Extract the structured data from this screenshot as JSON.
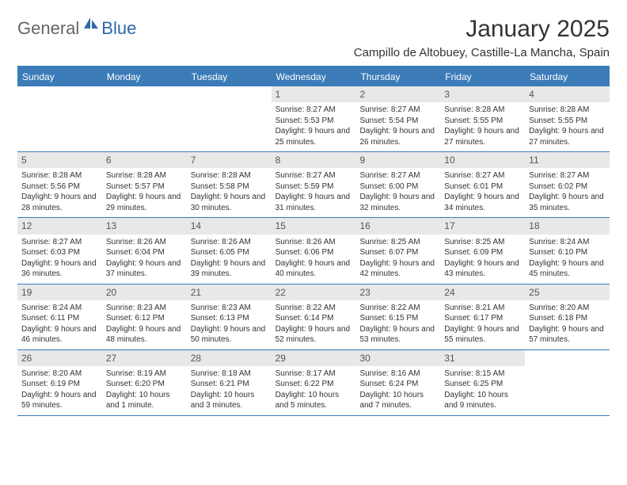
{
  "logo": {
    "general": "General",
    "blue": "Blue"
  },
  "title": "January 2025",
  "location": "Campillo de Altobuey, Castille-La Mancha, Spain",
  "weekdays": [
    "Sunday",
    "Monday",
    "Tuesday",
    "Wednesday",
    "Thursday",
    "Friday",
    "Saturday"
  ],
  "weeks": [
    [
      {
        "day": "",
        "lines": []
      },
      {
        "day": "",
        "lines": []
      },
      {
        "day": "",
        "lines": []
      },
      {
        "day": "1",
        "lines": [
          "Sunrise: 8:27 AM",
          "Sunset: 5:53 PM",
          "Daylight: 9 hours and 25 minutes."
        ]
      },
      {
        "day": "2",
        "lines": [
          "Sunrise: 8:27 AM",
          "Sunset: 5:54 PM",
          "Daylight: 9 hours and 26 minutes."
        ]
      },
      {
        "day": "3",
        "lines": [
          "Sunrise: 8:28 AM",
          "Sunset: 5:55 PM",
          "Daylight: 9 hours and 27 minutes."
        ]
      },
      {
        "day": "4",
        "lines": [
          "Sunrise: 8:28 AM",
          "Sunset: 5:55 PM",
          "Daylight: 9 hours and 27 minutes."
        ]
      }
    ],
    [
      {
        "day": "5",
        "lines": [
          "Sunrise: 8:28 AM",
          "Sunset: 5:56 PM",
          "Daylight: 9 hours and 28 minutes."
        ]
      },
      {
        "day": "6",
        "lines": [
          "Sunrise: 8:28 AM",
          "Sunset: 5:57 PM",
          "Daylight: 9 hours and 29 minutes."
        ]
      },
      {
        "day": "7",
        "lines": [
          "Sunrise: 8:28 AM",
          "Sunset: 5:58 PM",
          "Daylight: 9 hours and 30 minutes."
        ]
      },
      {
        "day": "8",
        "lines": [
          "Sunrise: 8:27 AM",
          "Sunset: 5:59 PM",
          "Daylight: 9 hours and 31 minutes."
        ]
      },
      {
        "day": "9",
        "lines": [
          "Sunrise: 8:27 AM",
          "Sunset: 6:00 PM",
          "Daylight: 9 hours and 32 minutes."
        ]
      },
      {
        "day": "10",
        "lines": [
          "Sunrise: 8:27 AM",
          "Sunset: 6:01 PM",
          "Daylight: 9 hours and 34 minutes."
        ]
      },
      {
        "day": "11",
        "lines": [
          "Sunrise: 8:27 AM",
          "Sunset: 6:02 PM",
          "Daylight: 9 hours and 35 minutes."
        ]
      }
    ],
    [
      {
        "day": "12",
        "lines": [
          "Sunrise: 8:27 AM",
          "Sunset: 6:03 PM",
          "Daylight: 9 hours and 36 minutes."
        ]
      },
      {
        "day": "13",
        "lines": [
          "Sunrise: 8:26 AM",
          "Sunset: 6:04 PM",
          "Daylight: 9 hours and 37 minutes."
        ]
      },
      {
        "day": "14",
        "lines": [
          "Sunrise: 8:26 AM",
          "Sunset: 6:05 PM",
          "Daylight: 9 hours and 39 minutes."
        ]
      },
      {
        "day": "15",
        "lines": [
          "Sunrise: 8:26 AM",
          "Sunset: 6:06 PM",
          "Daylight: 9 hours and 40 minutes."
        ]
      },
      {
        "day": "16",
        "lines": [
          "Sunrise: 8:25 AM",
          "Sunset: 6:07 PM",
          "Daylight: 9 hours and 42 minutes."
        ]
      },
      {
        "day": "17",
        "lines": [
          "Sunrise: 8:25 AM",
          "Sunset: 6:09 PM",
          "Daylight: 9 hours and 43 minutes."
        ]
      },
      {
        "day": "18",
        "lines": [
          "Sunrise: 8:24 AM",
          "Sunset: 6:10 PM",
          "Daylight: 9 hours and 45 minutes."
        ]
      }
    ],
    [
      {
        "day": "19",
        "lines": [
          "Sunrise: 8:24 AM",
          "Sunset: 6:11 PM",
          "Daylight: 9 hours and 46 minutes."
        ]
      },
      {
        "day": "20",
        "lines": [
          "Sunrise: 8:23 AM",
          "Sunset: 6:12 PM",
          "Daylight: 9 hours and 48 minutes."
        ]
      },
      {
        "day": "21",
        "lines": [
          "Sunrise: 8:23 AM",
          "Sunset: 6:13 PM",
          "Daylight: 9 hours and 50 minutes."
        ]
      },
      {
        "day": "22",
        "lines": [
          "Sunrise: 8:22 AM",
          "Sunset: 6:14 PM",
          "Daylight: 9 hours and 52 minutes."
        ]
      },
      {
        "day": "23",
        "lines": [
          "Sunrise: 8:22 AM",
          "Sunset: 6:15 PM",
          "Daylight: 9 hours and 53 minutes."
        ]
      },
      {
        "day": "24",
        "lines": [
          "Sunrise: 8:21 AM",
          "Sunset: 6:17 PM",
          "Daylight: 9 hours and 55 minutes."
        ]
      },
      {
        "day": "25",
        "lines": [
          "Sunrise: 8:20 AM",
          "Sunset: 6:18 PM",
          "Daylight: 9 hours and 57 minutes."
        ]
      }
    ],
    [
      {
        "day": "26",
        "lines": [
          "Sunrise: 8:20 AM",
          "Sunset: 6:19 PM",
          "Daylight: 9 hours and 59 minutes."
        ]
      },
      {
        "day": "27",
        "lines": [
          "Sunrise: 8:19 AM",
          "Sunset: 6:20 PM",
          "Daylight: 10 hours and 1 minute."
        ]
      },
      {
        "day": "28",
        "lines": [
          "Sunrise: 8:18 AM",
          "Sunset: 6:21 PM",
          "Daylight: 10 hours and 3 minutes."
        ]
      },
      {
        "day": "29",
        "lines": [
          "Sunrise: 8:17 AM",
          "Sunset: 6:22 PM",
          "Daylight: 10 hours and 5 minutes."
        ]
      },
      {
        "day": "30",
        "lines": [
          "Sunrise: 8:16 AM",
          "Sunset: 6:24 PM",
          "Daylight: 10 hours and 7 minutes."
        ]
      },
      {
        "day": "31",
        "lines": [
          "Sunrise: 8:15 AM",
          "Sunset: 6:25 PM",
          "Daylight: 10 hours and 9 minutes."
        ]
      },
      {
        "day": "",
        "lines": []
      }
    ]
  ],
  "colors": {
    "header_bg": "#3b7bb8",
    "daybar_bg": "#e8e8e8",
    "border": "#3b7bb8"
  }
}
